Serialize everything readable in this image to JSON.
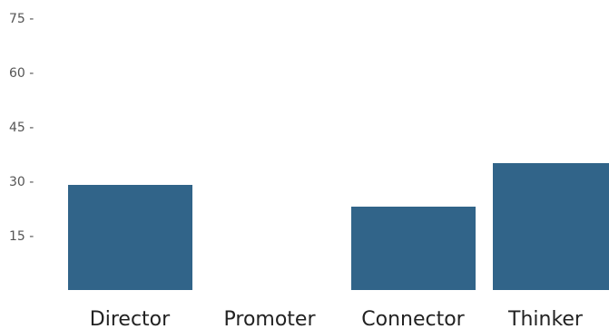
{
  "chart_data": {
    "type": "bar",
    "title": "",
    "xlabel": "",
    "ylabel": "",
    "categories": [
      "Director",
      "Promoter",
      "Connector",
      "Thinker"
    ],
    "values": [
      29,
      0,
      23,
      35
    ],
    "ylim": [
      0,
      75
    ],
    "yticks": [
      15,
      30,
      45,
      60,
      75
    ],
    "ytick_labels": [
      "15 -",
      "30 -",
      "45 -",
      "60 -",
      "75 -"
    ],
    "grid": false,
    "legend": "none",
    "bar_color": "#316489"
  }
}
